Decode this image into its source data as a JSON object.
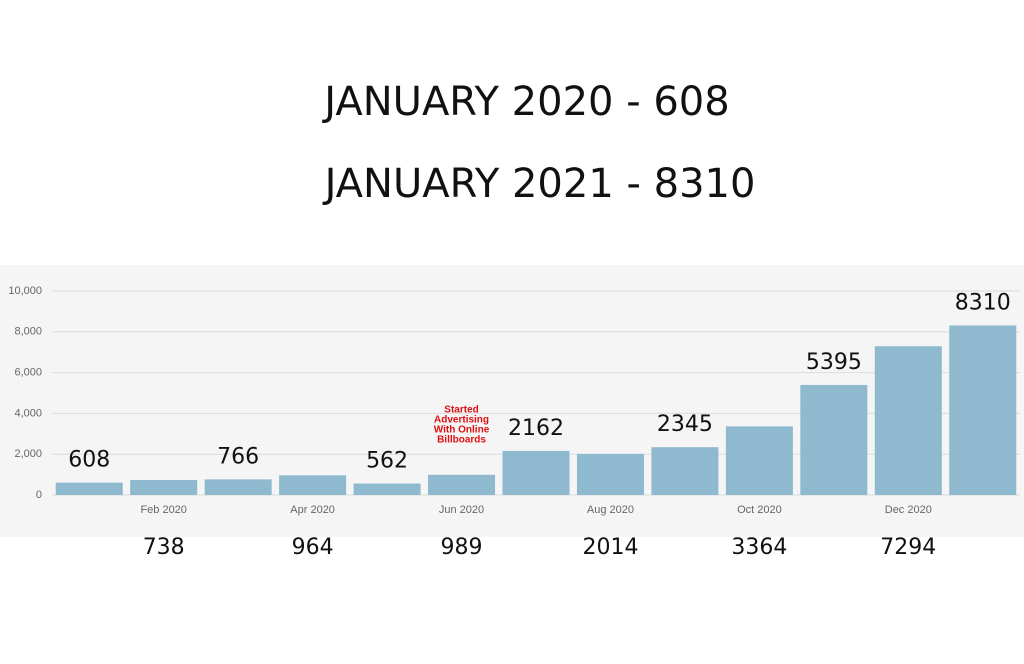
{
  "chart_data": {
    "type": "bar",
    "title": "JANUARY 2020 - 608",
    "subtitle": "JANUARY 2021 - 8310",
    "annotation": [
      "Started",
      "Advertising",
      "With Online",
      "Billboards"
    ],
    "categories": [
      null,
      "Feb 2020",
      null,
      "Apr 2020",
      null,
      "Jun 2020",
      null,
      "Aug 2020",
      null,
      "Oct 2020",
      null,
      "Dec 2020",
      null
    ],
    "values": [
      608,
      738,
      766,
      964,
      562,
      989,
      2162,
      2014,
      2345,
      3364,
      5395,
      7294,
      8310
    ],
    "color": "#8fb9cf",
    "ylim": [
      0,
      10000
    ],
    "yticks": [
      0,
      {
        "value": 2000,
        "label": "2,000"
      },
      {
        "value": 4000,
        "label": "4,000"
      },
      {
        "value": 6000,
        "label": "6,000"
      },
      {
        "value": 8000,
        "label": "8,000"
      },
      {
        "value": 10000,
        "label": "10,000"
      }
    ],
    "grid": true
  }
}
